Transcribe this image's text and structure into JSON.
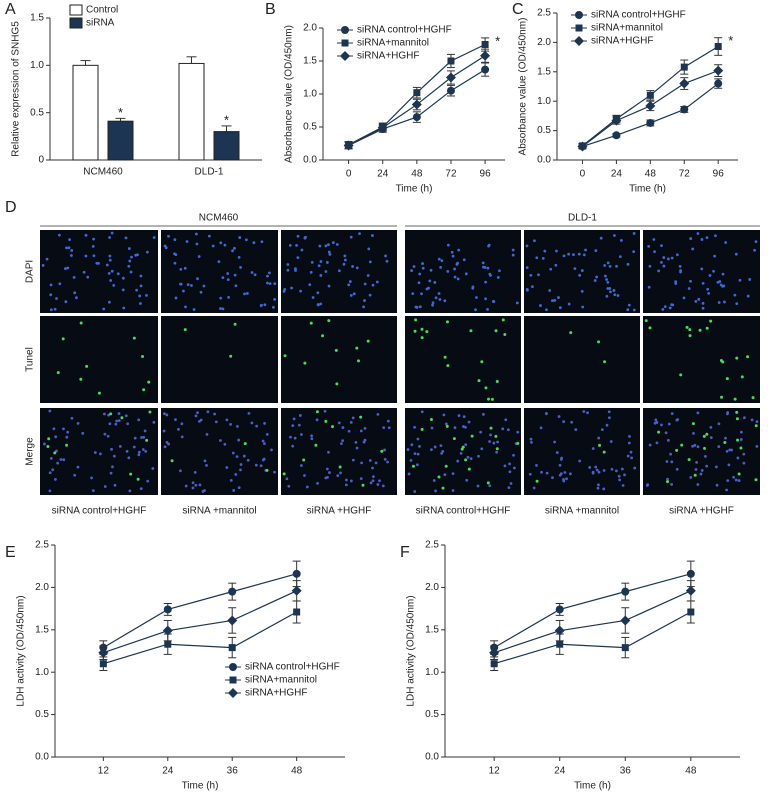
{
  "chart_data": [
    {
      "type": "bar",
      "panel": "A",
      "ylabel": "Relative expression of  SNHG5",
      "categories": [
        "NCM460",
        "DLD-1"
      ],
      "series": [
        {
          "name": "Control",
          "color": "#ffffff",
          "values": [
            1.0,
            1.02
          ],
          "errors": [
            0.05,
            0.07
          ]
        },
        {
          "name": "siRNA",
          "color": "#1b3553",
          "values": [
            0.41,
            0.3
          ],
          "errors": [
            0.03,
            0.06
          ],
          "annotations": [
            "*",
            "*"
          ]
        }
      ],
      "ylim": [
        0,
        1.5
      ],
      "yticks": [
        0,
        0.5,
        {
          "value": 1,
          "label": "1.0"
        },
        1.5
      ],
      "legend": "upper left"
    },
    {
      "type": "line",
      "panel": "B",
      "ylabel": "Absorbance value (OD/450nm)",
      "xlabel": "Time (h)",
      "x": [
        0,
        24,
        48,
        72,
        96
      ],
      "series": [
        {
          "name": "siRNA control+HGHF",
          "color": "#1b3553",
          "marker": "circle",
          "values": [
            0.22,
            0.47,
            0.65,
            1.05,
            1.37
          ],
          "errors": [
            0.05,
            0.05,
            0.08,
            0.08,
            0.1
          ]
        },
        {
          "name": "siRNA+mannitol",
          "color": "#1b3553",
          "marker": "square",
          "values": [
            0.23,
            0.5,
            1.02,
            1.5,
            1.75
          ],
          "errors": [
            0.05,
            0.06,
            0.08,
            0.1,
            0.1
          ],
          "annotations": [
            null,
            null,
            null,
            null,
            "*"
          ]
        },
        {
          "name": "siRNA+HGHF",
          "color": "#1b3553",
          "marker": "diamond",
          "values": [
            0.22,
            0.49,
            0.84,
            1.25,
            1.58
          ],
          "errors": [
            0.05,
            0.05,
            0.08,
            0.1,
            0.1
          ]
        }
      ],
      "xlim": [
        -18,
        110
      ],
      "xticks": [
        0,
        24,
        48,
        72,
        96
      ],
      "ylim": [
        0,
        2
      ],
      "yticks": [
        {
          "value": 0,
          "label": "0.0"
        },
        0.5,
        {
          "value": 1,
          "label": "1.0"
        },
        1.5,
        {
          "value": 2,
          "label": "2.0"
        }
      ],
      "legend": "upper left"
    },
    {
      "type": "line",
      "panel": "C",
      "ylabel": "Absorbance value (OD/450nm)",
      "xlabel": "Time (h)",
      "x": [
        0,
        24,
        48,
        72,
        96
      ],
      "series": [
        {
          "name": "siRNA control+HGHF",
          "color": "#1b3553",
          "marker": "circle",
          "values": [
            0.23,
            0.42,
            0.63,
            0.86,
            1.3
          ],
          "errors": [
            0.04,
            0.03,
            0.05,
            0.05,
            0.08
          ]
        },
        {
          "name": "siRNA+mannitol",
          "color": "#1b3553",
          "marker": "square",
          "values": [
            0.24,
            0.7,
            1.1,
            1.58,
            1.93
          ],
          "errors": [
            0.04,
            0.06,
            0.08,
            0.12,
            0.15
          ],
          "annotations": [
            null,
            null,
            null,
            null,
            "*"
          ]
        },
        {
          "name": "siRNA+HGHF",
          "color": "#1b3553",
          "marker": "diamond",
          "values": [
            0.23,
            0.67,
            0.92,
            1.3,
            1.52
          ],
          "errors": [
            0.04,
            0.06,
            0.08,
            0.1,
            0.1
          ]
        }
      ],
      "xlim": [
        -18,
        110
      ],
      "xticks": [
        0,
        24,
        48,
        72,
        96
      ],
      "ylim": [
        0,
        2.5
      ],
      "yticks": [
        {
          "value": 0,
          "label": "0.0"
        },
        0.5,
        {
          "value": 1,
          "label": "1.0"
        },
        1.5,
        {
          "value": 2,
          "label": "2.0"
        },
        2.5
      ],
      "legend": "upper left"
    },
    {
      "type": "line",
      "panel": "E",
      "ylabel": "LDH activity (OD/450nm)",
      "xlabel": "Time (h)",
      "x": [
        12,
        24,
        36,
        48
      ],
      "series": [
        {
          "name": "siRNA control+HGHF",
          "color": "#1b3553",
          "marker": "circle",
          "values": [
            1.29,
            1.74,
            1.95,
            2.16
          ],
          "errors": [
            0.08,
            0.07,
            0.1,
            0.15
          ]
        },
        {
          "name": "siRNA+mannitol",
          "color": "#1b3553",
          "marker": "square",
          "values": [
            1.1,
            1.33,
            1.29,
            1.71
          ],
          "errors": [
            0.08,
            0.12,
            0.12,
            0.13
          ]
        },
        {
          "name": "siRNA+HGHF",
          "color": "#1b3553",
          "marker": "diamond",
          "values": [
            1.23,
            1.49,
            1.61,
            1.96
          ],
          "errors": [
            0.08,
            0.12,
            0.15,
            0.12
          ]
        }
      ],
      "xlim": [
        3,
        57
      ],
      "xticks": [
        12,
        24,
        36,
        48
      ],
      "ylim": [
        0,
        2.5
      ],
      "yticks": [
        {
          "value": 0,
          "label": "0.0"
        },
        0.5,
        {
          "value": 1,
          "label": "1.0"
        },
        1.5,
        {
          "value": 2,
          "label": "2.0"
        },
        2.5
      ],
      "legend": "lower right"
    },
    {
      "type": "line",
      "panel": "F",
      "ylabel": "LDH activity (OD/450nm)",
      "xlabel": "Time (h)",
      "x": [
        12,
        24,
        36,
        48
      ],
      "series": [
        {
          "color": "#1b3553",
          "marker": "circle",
          "values": [
            1.29,
            1.74,
            1.95,
            2.16
          ],
          "errors": [
            0.08,
            0.07,
            0.1,
            0.15
          ]
        },
        {
          "color": "#1b3553",
          "marker": "square",
          "values": [
            1.1,
            1.33,
            1.29,
            1.71
          ],
          "errors": [
            0.08,
            0.12,
            0.12,
            0.13
          ]
        },
        {
          "color": "#1b3553",
          "marker": "diamond",
          "values": [
            1.23,
            1.49,
            1.61,
            1.96
          ],
          "errors": [
            0.08,
            0.12,
            0.15,
            0.12
          ]
        }
      ],
      "xlim": [
        3,
        57
      ],
      "xticks": [
        12,
        24,
        36,
        48
      ],
      "ylim": [
        0,
        2.5
      ],
      "yticks": [
        {
          "value": 0,
          "label": "0.0"
        },
        0.5,
        {
          "value": 1,
          "label": "1.0"
        },
        1.5,
        {
          "value": 2,
          "label": "2.0"
        },
        2.5
      ]
    }
  ],
  "panel_d": {
    "label": "D",
    "rows": [
      "DAPI",
      "Tunel",
      "Merge"
    ],
    "groups": [
      {
        "name": "NCM460",
        "columns": [
          "siRNA control+HGHF",
          "siRNA +mannitol",
          "siRNA +HGHF"
        ]
      },
      {
        "name": "DLD-1",
        "columns": [
          "siRNA control+HGHF",
          "siRNA +mannitol",
          "siRNA +HGHF"
        ]
      }
    ]
  }
}
